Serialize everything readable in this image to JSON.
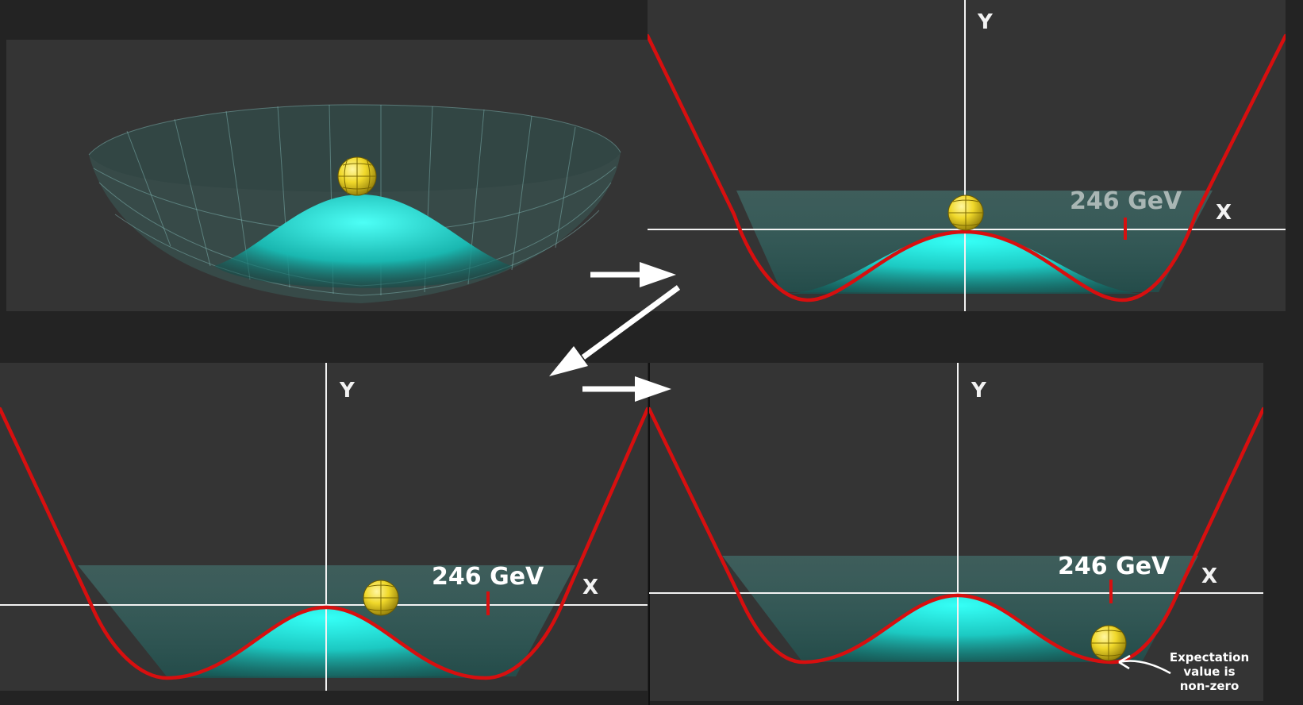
{
  "panels": {
    "top_left": {
      "kind": "3d-bowl"
    },
    "top_right": {
      "y_axis_label": "Y",
      "x_axis_label": "X",
      "energy_label": "246 GeV",
      "energy_label_color": "#a9b6b4",
      "ball_position": "top-of-hump"
    },
    "bottom_left": {
      "y_axis_label": "Y",
      "x_axis_label": "X",
      "energy_label": "246 GeV",
      "energy_label_color": "#ffffff",
      "ball_position": "rolling-right"
    },
    "bottom_right": {
      "y_axis_label": "Y",
      "x_axis_label": "X",
      "energy_label": "246 GeV",
      "energy_label_color": "#ffffff",
      "ball_position": "in-minimum",
      "annotation": [
        "Expectation",
        "value is",
        "non-zero"
      ]
    }
  },
  "colors": {
    "background": "#232323",
    "panel": "#343434",
    "curve": "#d70f0f",
    "surface": "#22e6e0",
    "ball": "#e8d21c",
    "axis": "#f2f2f2"
  },
  "arrows": [
    "right",
    "down-left",
    "right"
  ]
}
